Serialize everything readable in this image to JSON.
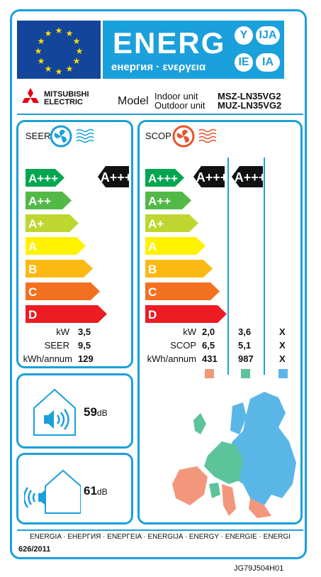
{
  "header": {
    "energ": "ENERG",
    "energ_sub": "енергия · ενεργεια",
    "badges": [
      "Y",
      "IJA",
      "IE",
      "IA"
    ]
  },
  "brand": {
    "line1": "MITSUBISHI",
    "line2": "ELECTRIC"
  },
  "model": {
    "label": "Model",
    "indoor_label": "Indoor unit",
    "outdoor_label": "Outdoor unit",
    "indoor_value": "MSZ-LN35VG2",
    "outdoor_value": "MUZ-LN35VG2"
  },
  "seer": {
    "title": "SEER",
    "rating": "A+++",
    "classes": [
      "A+++",
      "A++",
      "A+",
      "A",
      "B",
      "C",
      "D"
    ],
    "rows": [
      {
        "label": "kW",
        "value": "3,5"
      },
      {
        "label": "SEER",
        "value": "9,5"
      },
      {
        "label": "kWh/annum",
        "value": "129"
      }
    ]
  },
  "scop": {
    "title": "SCOP",
    "classes": [
      "A+++",
      "A++",
      "A+",
      "A",
      "B",
      "C",
      "D"
    ],
    "ratings": [
      "A+++",
      "A+++"
    ],
    "row_labels": [
      "kW",
      "SCOP",
      "kWh/annum"
    ],
    "columns": [
      {
        "values": [
          "2,0",
          "6,5",
          "431"
        ],
        "color": "#f2977c"
      },
      {
        "values": [
          "3,6",
          "5,1",
          "987"
        ],
        "color": "#5cc39a"
      },
      {
        "values": [
          "X",
          "X",
          "X"
        ],
        "color": "#5bb6e8"
      }
    ]
  },
  "noise": {
    "indoor": {
      "value": "59",
      "unit": "dB"
    },
    "outdoor": {
      "value": "61",
      "unit": "dB"
    }
  },
  "class_colors": [
    "#00a650",
    "#52b947",
    "#bed630",
    "#fff200",
    "#fdb913",
    "#f37021",
    "#ed1c24"
  ],
  "footer": {
    "energia": "ENERGIA · ЕНЕРГИЯ · ΕΝΕΡΓΕΙΑ · ENERGIJA · ENERGY · ENERGIE · ENERGI",
    "regulation": "626/2011",
    "code": "JG79J504H01"
  }
}
